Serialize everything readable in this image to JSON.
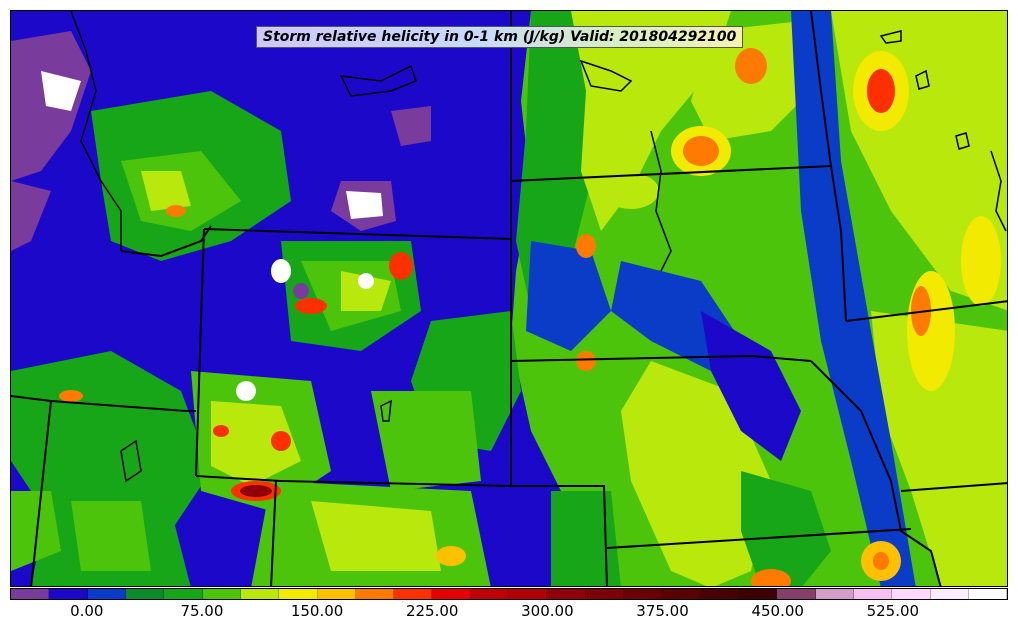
{
  "title": "Storm relative helicity in 0-1 km (J/kg) Valid: 201804292100",
  "colorbar": {
    "colors": [
      "#7a3c9c",
      "#1c08c8",
      "#0a3cc8",
      "#0c8a2c",
      "#17a617",
      "#4cc40c",
      "#b8e80c",
      "#f2ea00",
      "#ffc000",
      "#ff7a00",
      "#ff3000",
      "#e60000",
      "#c00000",
      "#b00008",
      "#900008",
      "#7c0004",
      "#680004",
      "#580004",
      "#480004",
      "#3c0004",
      "#844068",
      "#d49cc8",
      "#f8c0f0",
      "#ffd8ff",
      "#ffecff",
      "#ffffff"
    ],
    "tick_labels": [
      {
        "text": "0.00",
        "value": 0
      },
      {
        "text": "75.00",
        "value": 75
      },
      {
        "text": "150.00",
        "value": 150
      },
      {
        "text": "225.00",
        "value": 225
      },
      {
        "text": "300.00",
        "value": 300
      },
      {
        "text": "375.00",
        "value": 375
      },
      {
        "text": "450.00",
        "value": 450
      },
      {
        "text": "525.00",
        "value": 525
      }
    ],
    "range": [
      -50,
      600
    ]
  }
}
